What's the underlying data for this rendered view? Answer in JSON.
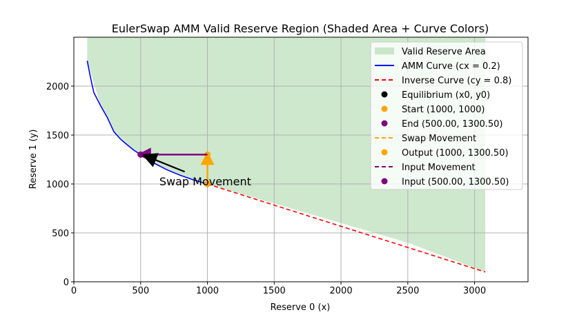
{
  "chart_data": {
    "type": "line",
    "title": "EulerSwap AMM Valid Reserve Region (Shaded Area + Curve Colors)",
    "xlabel": "Reserve 0 (x)",
    "ylabel": "Reserve 1 (y)",
    "xlim": [
      0,
      3400
    ],
    "ylim": [
      0,
      2500
    ],
    "xticks": [
      0,
      500,
      1000,
      1500,
      2000,
      2500,
      3000
    ],
    "yticks": [
      0,
      500,
      1000,
      1500,
      2000
    ],
    "grid": true,
    "legend_position": "top-right",
    "params": {
      "x0": 1000,
      "y0": 1000,
      "cx": 0.2,
      "cy": 0.8
    },
    "series": [
      {
        "name": "Valid Reserve Area",
        "kind": "fill",
        "color": "#a5d5a5",
        "x": [
          100,
          200,
          300,
          400,
          500,
          600,
          700,
          800,
          900,
          1000,
          1500,
          2000,
          2500,
          3080
        ],
        "y_lower": [
          2260,
          1800,
          1533,
          1400,
          1300,
          1213,
          1143,
          1087,
          1040,
          1000,
          800,
          600,
          400,
          100
        ],
        "y_upper": 2500
      },
      {
        "name": "AMM Curve (cx = 0.2)",
        "kind": "line",
        "color": "#0000ff",
        "style": "solid",
        "x": [
          100,
          125,
          150,
          200,
          250,
          300,
          350,
          400,
          450,
          500,
          600,
          700,
          800,
          900,
          1000
        ],
        "y": [
          2260,
          2085,
          1933,
          1800,
          1680,
          1533,
          1457,
          1400,
          1344,
          1300,
          1213,
          1143,
          1087,
          1040,
          1000
        ]
      },
      {
        "name": "Inverse Curve (cy = 0.8)",
        "kind": "line",
        "color": "#ff0000",
        "style": "dashed",
        "x": [
          1000,
          3080
        ],
        "y": [
          1000,
          100
        ]
      },
      {
        "name": "Equilibrium (x0, y0)",
        "kind": "point",
        "color": "#000000",
        "x": 1000,
        "y": 1000
      },
      {
        "name": "Start (1000, 1000)",
        "kind": "point",
        "color": "#ffa500",
        "x": 1000,
        "y": 1000
      },
      {
        "name": "End (500.00, 1300.50)",
        "kind": "point",
        "color": "#800080",
        "x": 500,
        "y": 1300.5
      },
      {
        "name": "Swap Movement",
        "kind": "arrow",
        "color": "#ffa500",
        "style": "dashed",
        "x": [
          1000,
          1000
        ],
        "y": [
          1000,
          1300.5
        ]
      },
      {
        "name": "Output (1000, 1300.50)",
        "kind": "point",
        "color": "#ffa500",
        "x": 1000,
        "y": 1300.5
      },
      {
        "name": "Input Movement",
        "kind": "arrow",
        "color": "#800080",
        "style": "dashed",
        "x": [
          1000,
          500
        ],
        "y": [
          1300.5,
          1300.5
        ]
      },
      {
        "name": "Input (500.00, 1300.50)",
        "kind": "point",
        "color": "#800080",
        "x": 500,
        "y": 1300.5
      }
    ],
    "annotations": [
      {
        "text": "Swap Movement",
        "x": 640,
        "y": 1000,
        "arrow_from": [
          830,
          1125
        ],
        "arrow_to": [
          530,
          1290
        ],
        "color": "#000000"
      }
    ]
  }
}
